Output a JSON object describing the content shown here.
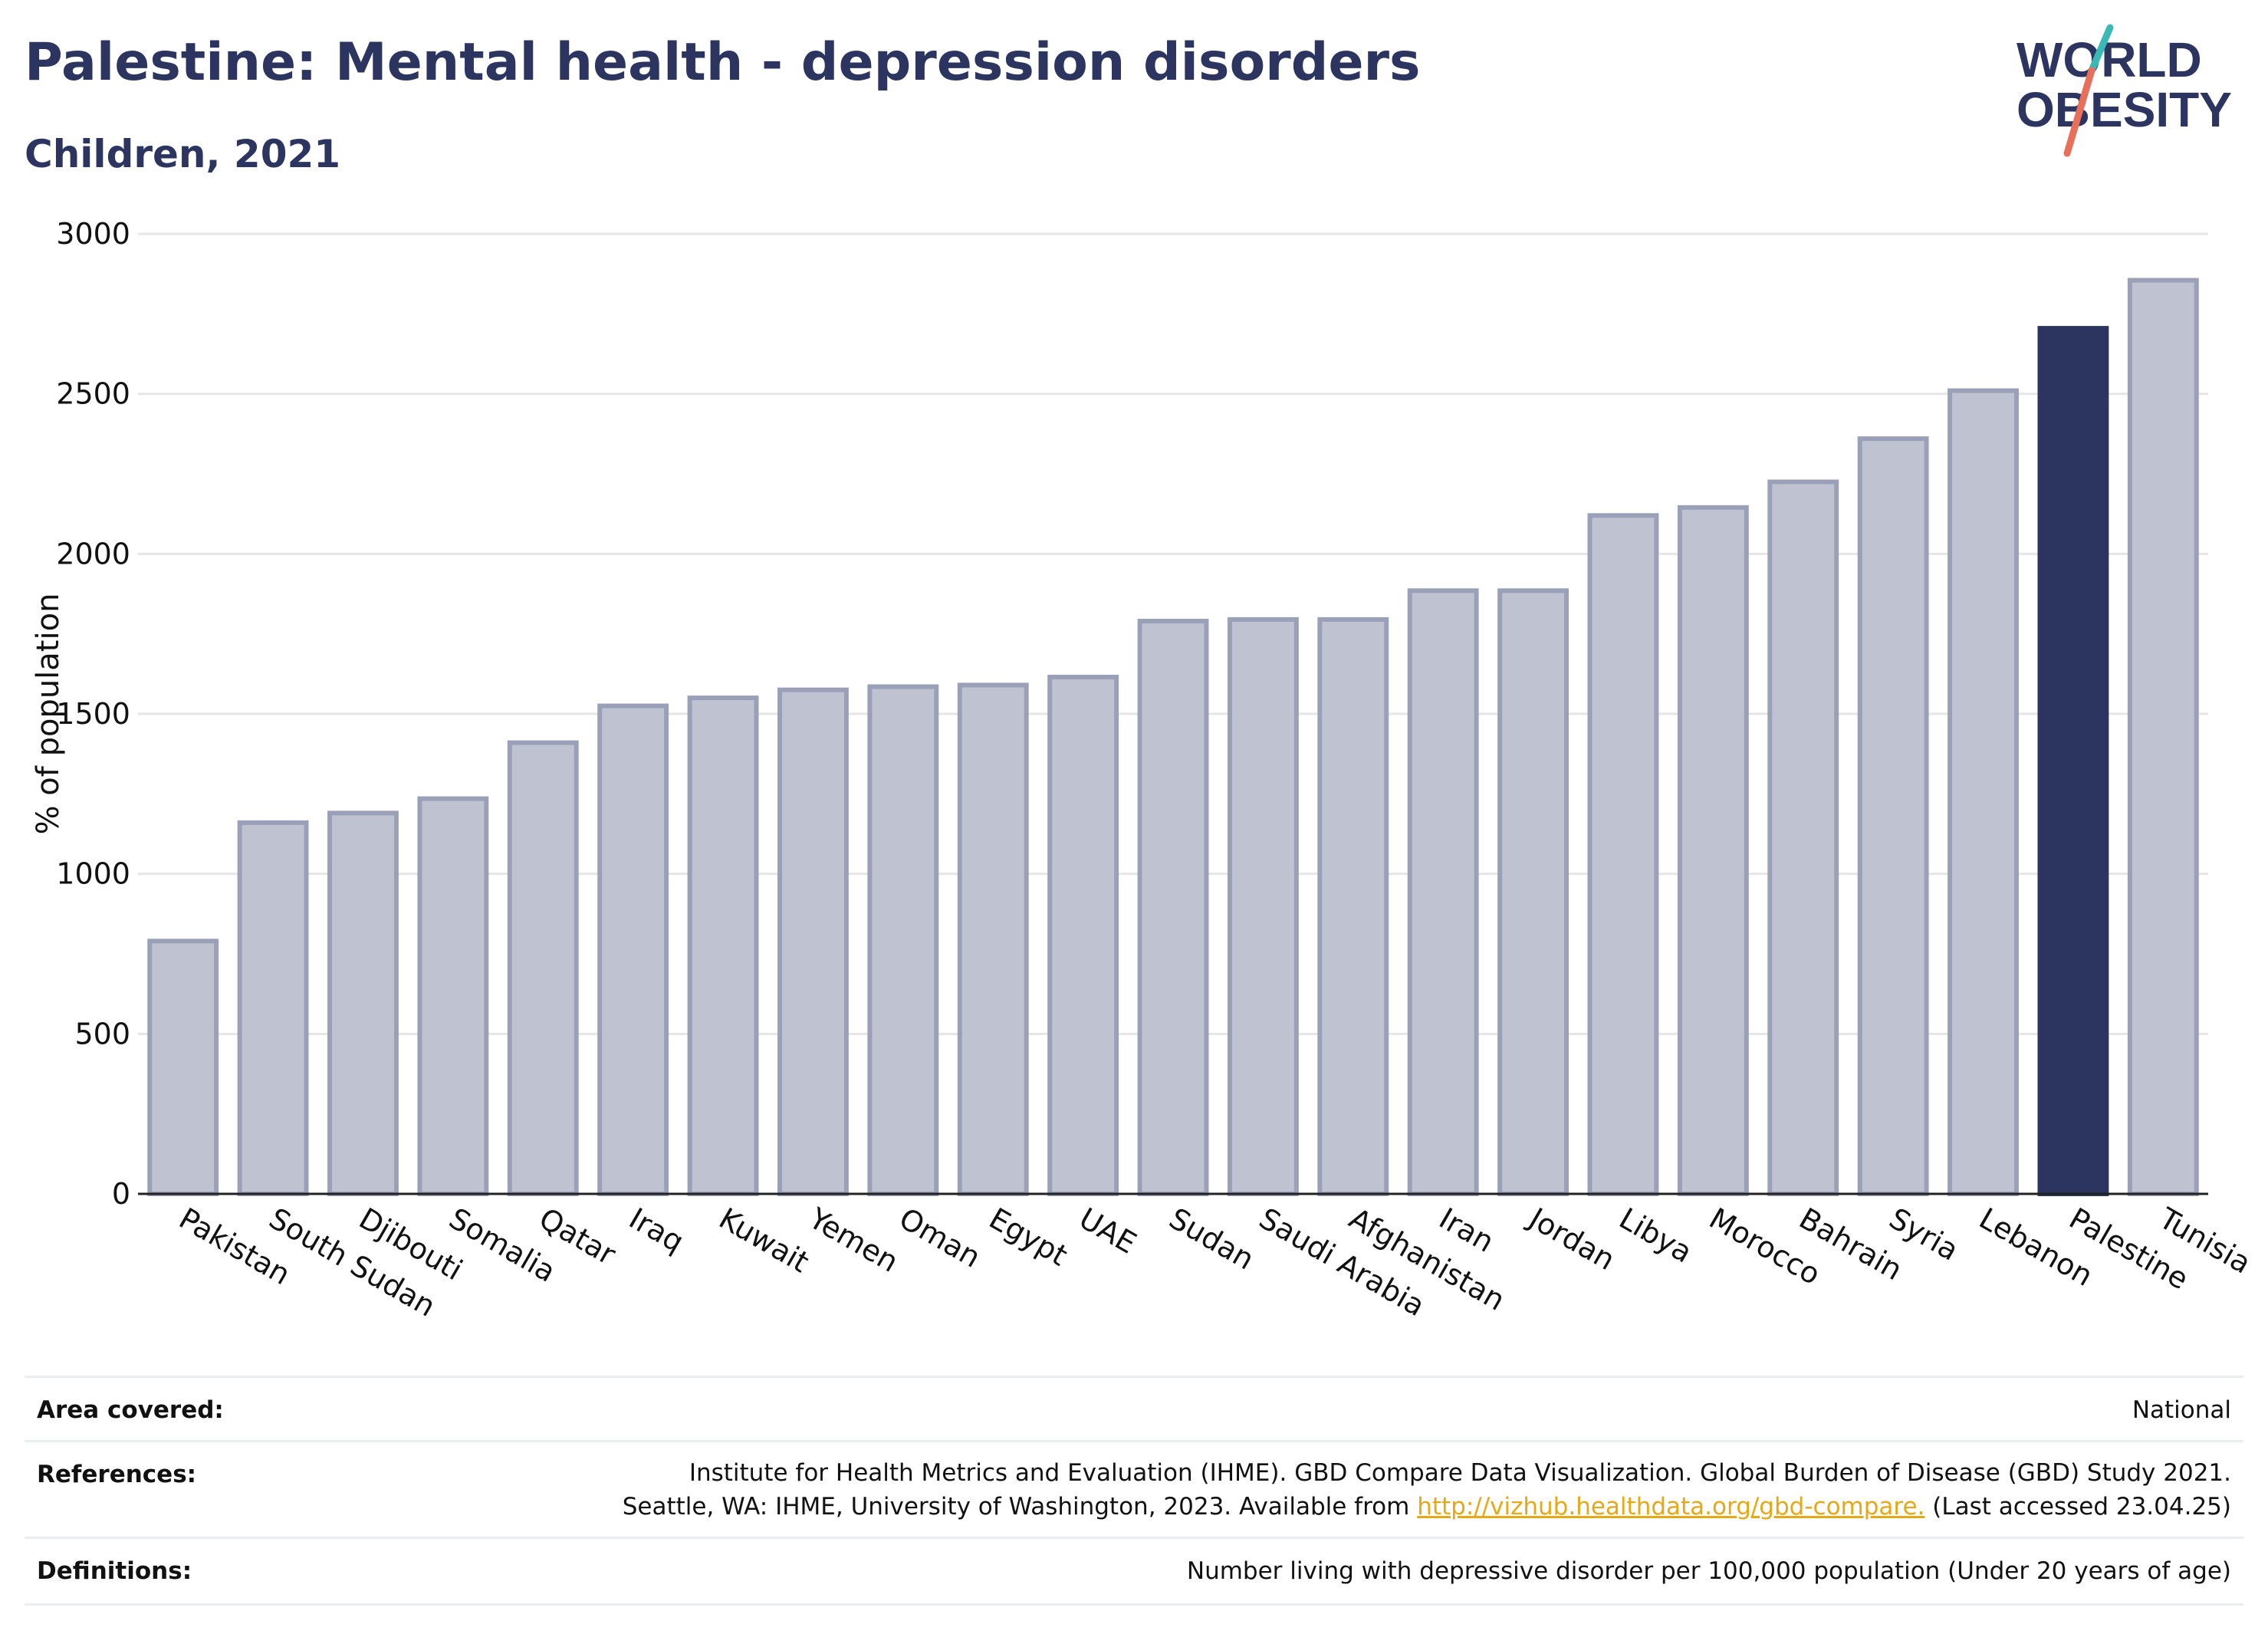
{
  "header": {
    "title": "Palestine: Mental health - depression disorders",
    "subtitle": "Children, 2021"
  },
  "logo": {
    "line1": "WORLD",
    "line2": "OBESITY",
    "accent_teal": "#3bb9b5",
    "accent_coral": "#e8705a",
    "text_color": "#2b3560"
  },
  "chart_data": {
    "type": "bar",
    "ylabel": "% of population",
    "ylim": [
      0,
      3000
    ],
    "yticks": [
      0,
      500,
      1000,
      1500,
      2000,
      2500,
      3000
    ],
    "grid": true,
    "highlight": "Palestine",
    "colors": {
      "bar": "#bfc3d1",
      "bar_border": "#9aa0b8",
      "highlight": "#2b3560"
    },
    "categories": [
      "Pakistan",
      "South Sudan",
      "Djibouti",
      "Somalia",
      "Qatar",
      "Iraq",
      "Kuwait",
      "Yemen",
      "Oman",
      "Egypt",
      "UAE",
      "Sudan",
      "Saudi Arabia",
      "Afghanistan",
      "Iran",
      "Jordan",
      "Libya",
      "Morocco",
      "Bahrain",
      "Syria",
      "Lebanon",
      "Palestine",
      "Tunisia"
    ],
    "values": [
      790,
      1160,
      1190,
      1235,
      1410,
      1525,
      1550,
      1575,
      1585,
      1590,
      1615,
      1790,
      1795,
      1795,
      1885,
      1885,
      2120,
      2145,
      2225,
      2360,
      2510,
      2705,
      2855
    ]
  },
  "footer": {
    "area_label": "Area covered:",
    "area_value": "National",
    "references_label": "References:",
    "references_line1": "Institute for Health Metrics and Evaluation (IHME). GBD Compare Data Visualization. Global Burden of Disease (GBD) Study 2021.",
    "references_line2_pre": "Seattle, WA: IHME, University of Washington, 2023. Available from ",
    "references_link": "http://vizhub.healthdata.org/gbd-compare.",
    "references_line2_post": " (Last accessed 23.04.25)",
    "definitions_label": "Definitions:",
    "definitions_value": "Number living with depressive disorder per 100,000 population (Under 20 years of age)"
  }
}
